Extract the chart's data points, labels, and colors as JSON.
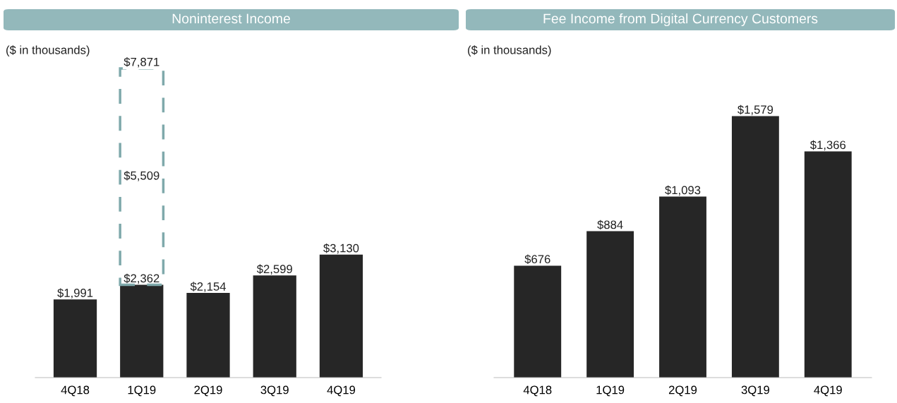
{
  "chart_data": [
    {
      "type": "bar",
      "title": "Noninterest Income",
      "annotations": [
        "($ in thousands)"
      ],
      "categories": [
        "4Q18",
        "1Q19",
        "2Q19",
        "3Q19",
        "4Q19"
      ],
      "stacked": true,
      "series": [
        {
          "color": "#262626",
          "values": [
            1991,
            2362,
            2154,
            2599,
            3130
          ],
          "value_labels": [
            "$1,991",
            "$2,362",
            "$2,154",
            "$2,599",
            "$3,130"
          ]
        },
        {
          "color": "#7fa9ab",
          "line_style": "dashed",
          "values": [
            null,
            5509,
            null,
            null,
            null
          ],
          "value_labels": [
            null,
            "$5,509",
            null,
            null,
            null
          ]
        }
      ],
      "totals": [
        null,
        "$7,871",
        null,
        null,
        null
      ]
    },
    {
      "type": "bar",
      "title": "Fee Income from Digital Currency Customers",
      "annotations": [
        "($ in thousands)"
      ],
      "categories": [
        "4Q18",
        "1Q19",
        "2Q19",
        "3Q19",
        "4Q19"
      ],
      "series": [
        {
          "color": "#262626",
          "values": [
            676,
            884,
            1093,
            1579,
            1366
          ],
          "value_labels": [
            "$676",
            "$884",
            "$1,093",
            "$1,579",
            "$1,366"
          ]
        }
      ]
    }
  ]
}
